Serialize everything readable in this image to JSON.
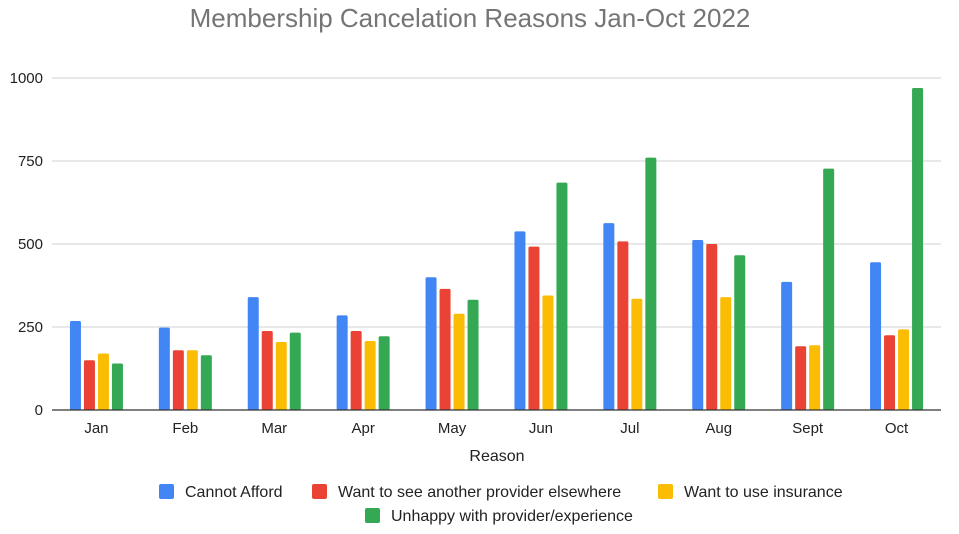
{
  "chart_data": {
    "type": "bar",
    "title": "Membership Cancelation Reasons Jan-Oct 2022",
    "xlabel": "Reason",
    "ylabel": "",
    "ylim": [
      0,
      1000
    ],
    "yticks": [
      0,
      250,
      500,
      750,
      1000
    ],
    "grid": true,
    "legend_position": "bottom",
    "categories": [
      "Jan",
      "Feb",
      "Mar",
      "Apr",
      "May",
      "Jun",
      "Jul",
      "Aug",
      "Sept",
      "Oct"
    ],
    "series": [
      {
        "name": "Cannot Afford",
        "color": "#4285F4",
        "values": [
          268,
          248,
          340,
          285,
          400,
          538,
          563,
          512,
          386,
          445
        ]
      },
      {
        "name": "Want to see another provider elsewhere",
        "color": "#EA4335",
        "values": [
          150,
          180,
          238,
          238,
          365,
          492,
          508,
          500,
          192,
          225
        ]
      },
      {
        "name": "Want to use insurance",
        "color": "#FBBC04",
        "values": [
          170,
          180,
          205,
          208,
          290,
          345,
          335,
          340,
          195,
          243
        ]
      },
      {
        "name": "Unhappy with provider/experience",
        "color": "#34A853",
        "values": [
          140,
          165,
          233,
          222,
          332,
          685,
          760,
          466,
          727,
          970
        ]
      }
    ]
  }
}
